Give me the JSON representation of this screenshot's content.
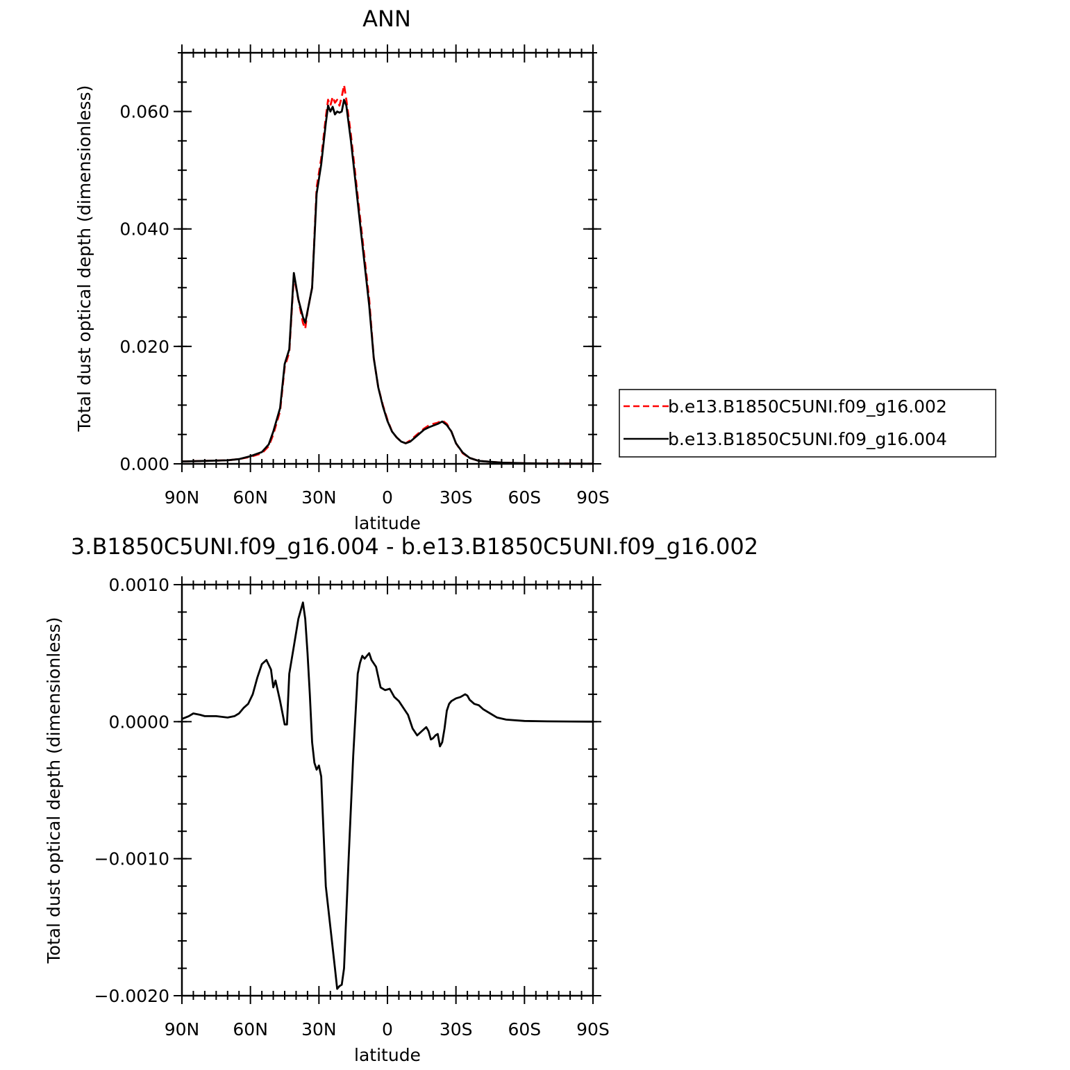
{
  "chart_data": [
    {
      "type": "line",
      "title": "ANN",
      "xlabel": "latitude",
      "ylabel": "Total dust optical depth (dimensionless)",
      "x_ticks": [
        90,
        60,
        30,
        0,
        -30,
        -60,
        -90
      ],
      "x_tick_labels": [
        "90N",
        "60N",
        "30N",
        "0",
        "30S",
        "60S",
        "90S"
      ],
      "xlim": [
        90,
        -90
      ],
      "ylim": [
        0,
        0.07
      ],
      "y_ticks": [
        0,
        0.02,
        0.04,
        0.06
      ],
      "y_tick_labels": [
        "0.000",
        "0.020",
        "0.040",
        "0.060"
      ],
      "grid": false,
      "legend_position": "right",
      "series": [
        {
          "name": "b.e13.B1850C5UNI.f09_g16.002",
          "color": "#ff0000",
          "dash": "dashed",
          "points": [
            [
              90,
              0.0004
            ],
            [
              80,
              0.0005
            ],
            [
              70,
              0.0006
            ],
            [
              65,
              0.0008
            ],
            [
              60,
              0.0012
            ],
            [
              55,
              0.0018
            ],
            [
              52,
              0.003
            ],
            [
              50,
              0.005
            ],
            [
              47,
              0.009
            ],
            [
              45,
              0.0165
            ],
            [
              43,
              0.019
            ],
            [
              41,
              0.032
            ],
            [
              39,
              0.028
            ],
            [
              37,
              0.024
            ],
            [
              36,
              0.023
            ],
            [
              35,
              0.026
            ],
            [
              33,
              0.03
            ],
            [
              31,
              0.047
            ],
            [
              29,
              0.052
            ],
            [
              27,
              0.059
            ],
            [
              26,
              0.062
            ],
            [
              25,
              0.061
            ],
            [
              24,
              0.0625
            ],
            [
              23,
              0.0615
            ],
            [
              22,
              0.062
            ],
            [
              21,
              0.061
            ],
            [
              20,
              0.0625
            ],
            [
              19,
              0.0645
            ],
            [
              18,
              0.062
            ],
            [
              16,
              0.056
            ],
            [
              14,
              0.049
            ],
            [
              12,
              0.042
            ],
            [
              10,
              0.035
            ],
            [
              8,
              0.028
            ],
            [
              6,
              0.018
            ],
            [
              4,
              0.013
            ],
            [
              2,
              0.01
            ],
            [
              0,
              0.0075
            ],
            [
              -2,
              0.0055
            ],
            [
              -4,
              0.0045
            ],
            [
              -6,
              0.0038
            ],
            [
              -8,
              0.0035
            ],
            [
              -10,
              0.004
            ],
            [
              -13,
              0.005
            ],
            [
              -16,
              0.006
            ],
            [
              -18,
              0.0065
            ],
            [
              -20,
              0.0068
            ],
            [
              -22,
              0.007
            ],
            [
              -24,
              0.0074
            ],
            [
              -26,
              0.0068
            ],
            [
              -28,
              0.0055
            ],
            [
              -30,
              0.0035
            ],
            [
              -33,
              0.0018
            ],
            [
              -36,
              0.001
            ],
            [
              -40,
              0.0005
            ],
            [
              -50,
              0.0002
            ],
            [
              -60,
              0.0001
            ],
            [
              -70,
              5e-05
            ],
            [
              -80,
              3e-05
            ],
            [
              -90,
              2e-05
            ]
          ]
        },
        {
          "name": "b.e13.B1850C5UNI.f09_g16.004",
          "color": "#000000",
          "dash": "solid",
          "points": [
            [
              90,
              0.0004
            ],
            [
              80,
              0.0005
            ],
            [
              70,
              0.0006
            ],
            [
              65,
              0.0008
            ],
            [
              60,
              0.0013
            ],
            [
              55,
              0.002
            ],
            [
              52,
              0.0033
            ],
            [
              50,
              0.0055
            ],
            [
              47,
              0.0095
            ],
            [
              45,
              0.017
            ],
            [
              43,
              0.0195
            ],
            [
              41,
              0.0325
            ],
            [
              39,
              0.028
            ],
            [
              37,
              0.025
            ],
            [
              36,
              0.024
            ],
            [
              35,
              0.026
            ],
            [
              33,
              0.03
            ],
            [
              31,
              0.046
            ],
            [
              29,
              0.051
            ],
            [
              27,
              0.058
            ],
            [
              26,
              0.061
            ],
            [
              25,
              0.06
            ],
            [
              24,
              0.0608
            ],
            [
              23,
              0.0595
            ],
            [
              22,
              0.06
            ],
            [
              21,
              0.0598
            ],
            [
              20,
              0.06
            ],
            [
              19,
              0.062
            ],
            [
              18,
              0.061
            ],
            [
              16,
              0.055
            ],
            [
              14,
              0.048
            ],
            [
              12,
              0.041
            ],
            [
              10,
              0.034
            ],
            [
              8,
              0.027
            ],
            [
              6,
              0.018
            ],
            [
              4,
              0.013
            ],
            [
              2,
              0.0098
            ],
            [
              0,
              0.0073
            ],
            [
              -2,
              0.0055
            ],
            [
              -4,
              0.0045
            ],
            [
              -6,
              0.0038
            ],
            [
              -8,
              0.0035
            ],
            [
              -10,
              0.0038
            ],
            [
              -13,
              0.0048
            ],
            [
              -16,
              0.0058
            ],
            [
              -18,
              0.0062
            ],
            [
              -20,
              0.0065
            ],
            [
              -22,
              0.0068
            ],
            [
              -24,
              0.0072
            ],
            [
              -26,
              0.0066
            ],
            [
              -28,
              0.0055
            ],
            [
              -30,
              0.0035
            ],
            [
              -33,
              0.0019
            ],
            [
              -36,
              0.001
            ],
            [
              -40,
              0.0005
            ],
            [
              -50,
              0.0002
            ],
            [
              -60,
              0.0001
            ],
            [
              -70,
              5e-05
            ],
            [
              -80,
              3e-05
            ],
            [
              -90,
              2e-05
            ]
          ]
        }
      ]
    },
    {
      "type": "line",
      "title": "3.B1850C5UNI.f09_g16.004 - b.e13.B1850C5UNI.f09_g16.002",
      "xlabel": "latitude",
      "ylabel": "Total dust optical depth (dimensionless)",
      "x_ticks": [
        90,
        60,
        30,
        0,
        -30,
        -60,
        -90
      ],
      "x_tick_labels": [
        "90N",
        "60N",
        "30N",
        "0",
        "30S",
        "60S",
        "90S"
      ],
      "xlim": [
        90,
        -90
      ],
      "ylim": [
        -0.002,
        0.001
      ],
      "y_ticks": [
        -0.002,
        -0.001,
        0,
        0.001
      ],
      "y_tick_labels": [
        "−0.0020",
        "−0.0010",
        "0.0000",
        "0.0010"
      ],
      "grid": false,
      "series": [
        {
          "color": "#000000",
          "dash": "solid",
          "points": [
            [
              90,
              2e-05
            ],
            [
              87,
              4e-05
            ],
            [
              85,
              6e-05
            ],
            [
              82,
              5e-05
            ],
            [
              80,
              4e-05
            ],
            [
              75,
              4e-05
            ],
            [
              70,
              3e-05
            ],
            [
              67,
              4e-05
            ],
            [
              65,
              6e-05
            ],
            [
              63,
              0.0001
            ],
            [
              61,
              0.00013
            ],
            [
              59,
              0.0002
            ],
            [
              57,
              0.00032
            ],
            [
              55,
              0.00042
            ],
            [
              53,
              0.00045
            ],
            [
              51,
              0.00038
            ],
            [
              50,
              0.00025
            ],
            [
              49,
              0.0003
            ],
            [
              47,
              0.00015
            ],
            [
              45,
              -2e-05
            ],
            [
              44,
              -2e-05
            ],
            [
              43,
              0.00035
            ],
            [
              41,
              0.00055
            ],
            [
              39,
              0.00075
            ],
            [
              37,
              0.00087
            ],
            [
              36,
              0.00075
            ],
            [
              35,
              0.0005
            ],
            [
              34,
              0.0002
            ],
            [
              33,
              -0.00015
            ],
            [
              32,
              -0.0003
            ],
            [
              31,
              -0.00035
            ],
            [
              30,
              -0.00032
            ],
            [
              29,
              -0.0004
            ],
            [
              28,
              -0.0008
            ],
            [
              27,
              -0.0012
            ],
            [
              25,
              -0.0015
            ],
            [
              23,
              -0.0018
            ],
            [
              22,
              -0.00195
            ],
            [
              21,
              -0.00193
            ],
            [
              20,
              -0.00192
            ],
            [
              19,
              -0.0018
            ],
            [
              18,
              -0.0014
            ],
            [
              17,
              -0.001
            ],
            [
              15,
              -0.00025
            ],
            [
              13,
              0.00035
            ],
            [
              12,
              0.00043
            ],
            [
              11,
              0.00048
            ],
            [
              10,
              0.00046
            ],
            [
              9,
              0.00048
            ],
            [
              8,
              0.0005
            ],
            [
              7,
              0.00045
            ],
            [
              5,
              0.0004
            ],
            [
              3,
              0.00025
            ],
            [
              1,
              0.00023
            ],
            [
              -1,
              0.00024
            ],
            [
              -3,
              0.00018
            ],
            [
              -5,
              0.00015
            ],
            [
              -7,
              0.0001
            ],
            [
              -9,
              5e-05
            ],
            [
              -11,
              -5e-05
            ],
            [
              -13,
              -0.0001
            ],
            [
              -15,
              -7e-05
            ],
            [
              -17,
              -4e-05
            ],
            [
              -18,
              -7e-05
            ],
            [
              -19,
              -0.00013
            ],
            [
              -20,
              -0.00012
            ],
            [
              -21,
              -0.0001
            ],
            [
              -22,
              -9e-05
            ],
            [
              -23,
              -0.00018
            ],
            [
              -24,
              -0.00015
            ],
            [
              -25,
              -5e-05
            ],
            [
              -26,
              8e-05
            ],
            [
              -27,
              0.00013
            ],
            [
              -28,
              0.00015
            ],
            [
              -30,
              0.00017
            ],
            [
              -32,
              0.00018
            ],
            [
              -34,
              0.0002
            ],
            [
              -35,
              0.00019
            ],
            [
              -36,
              0.00016
            ],
            [
              -38,
              0.00013
            ],
            [
              -40,
              0.00012
            ],
            [
              -42,
              9e-05
            ],
            [
              -45,
              6e-05
            ],
            [
              -48,
              3e-05
            ],
            [
              -52,
              1.5e-05
            ],
            [
              -60,
              5e-06
            ],
            [
              -70,
              2e-06
            ],
            [
              -80,
              1e-06
            ],
            [
              -90,
              0.0
            ]
          ]
        }
      ]
    }
  ]
}
